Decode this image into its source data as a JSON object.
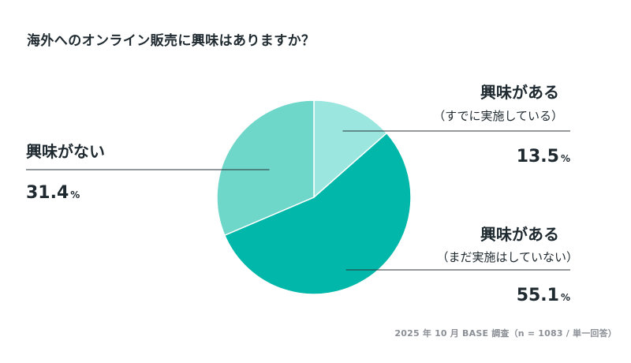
{
  "title": "海外へのオンライン販売に興味はありますか？",
  "source": "2025 年 10 月 BASE 調査（n = 1083 / 単一回答）",
  "chart_data": {
    "type": "pie",
    "title": "海外へのオンライン販売に興味はありますか？",
    "start_angle_deg": 0,
    "direction": "clockwise",
    "slices": [
      {
        "key": "interested_done",
        "label_main": "興味がある",
        "label_sub": "（すでに実施している）",
        "value": 13.5,
        "value_text": "13.5",
        "unit": "%",
        "color": "#9be6de"
      },
      {
        "key": "interested_not_done",
        "label_main": "興味がある",
        "label_sub": "（まだ実施はしていない）",
        "value": 55.1,
        "value_text": "55.1",
        "unit": "%",
        "color": "#00b7a9"
      },
      {
        "key": "not_interested",
        "label_main": "興味がない",
        "label_sub": "",
        "value": 31.4,
        "value_text": "31.4",
        "unit": "%",
        "color": "#6fd6ca"
      }
    ],
    "legend": "none",
    "grid": false
  }
}
